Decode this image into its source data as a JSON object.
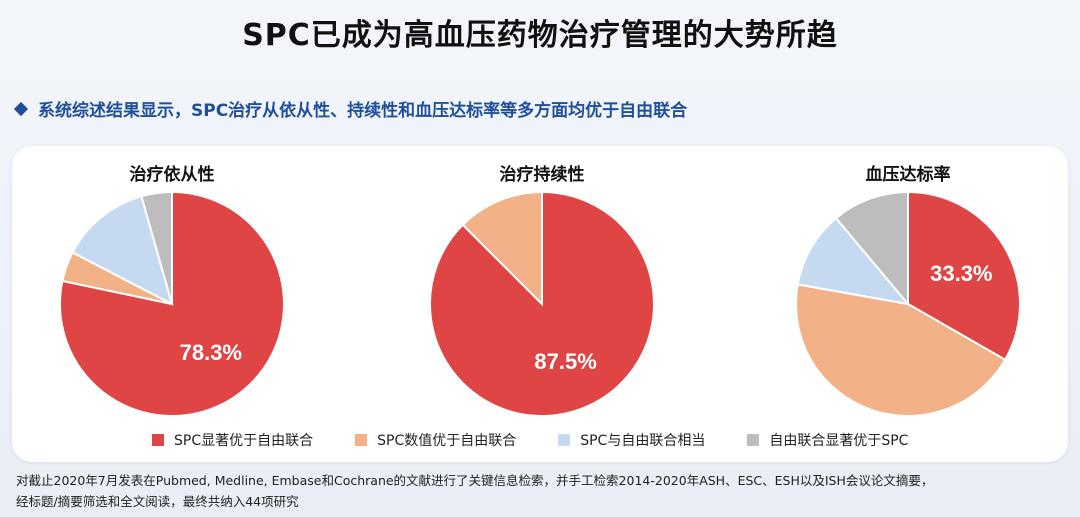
{
  "title": "SPC已成为高血压药物治疗管理的大势所趋",
  "subtitle": "系统综述结果显示，SPC治疗从依从性、持续性和血压达标率等多方面均优于自由联合",
  "legend": [
    {
      "label": "SPC显著优于自由联合",
      "color": "#e04545"
    },
    {
      "label": "SPC数值优于自由联合",
      "color": "#f2b186"
    },
    {
      "label": "SPC与自由联合相当",
      "color": "#c5daf0"
    },
    {
      "label": "自由联合显著优于SPC",
      "color": "#bdbdbd"
    }
  ],
  "chart_data": [
    {
      "type": "pie",
      "title": "治疗依从性",
      "categories": [
        "SPC显著优于自由联合",
        "SPC数值优于自由联合",
        "SPC与自由联合相当",
        "自由联合显著优于SPC"
      ],
      "values": [
        78.3,
        4.3,
        13.0,
        4.4
      ],
      "label": "78.3%"
    },
    {
      "type": "pie",
      "title": "治疗持续性",
      "categories": [
        "SPC显著优于自由联合",
        "SPC数值优于自由联合",
        "SPC与自由联合相当",
        "自由联合显著优于SPC"
      ],
      "values": [
        87.5,
        12.5,
        0,
        0
      ],
      "label": "87.5%"
    },
    {
      "type": "pie",
      "title": "血压达标率",
      "categories": [
        "SPC显著优于自由联合",
        "SPC数值优于自由联合",
        "SPC与自由联合相当",
        "自由联合显著优于SPC"
      ],
      "values": [
        33.3,
        44.5,
        11.1,
        11.1
      ],
      "label": "33.3%"
    }
  ],
  "footnote": {
    "line1": "对截止2020年7月发表在Pubmed, Medline, Embase和Cochrane的文献进行了关键信息检索，并手工检索2014-2020年ASH、ESC、ESH以及ISH会议论文摘要，",
    "line2": "经标题/摘要筛选和全文阅读，最终共纳入44项研究"
  }
}
